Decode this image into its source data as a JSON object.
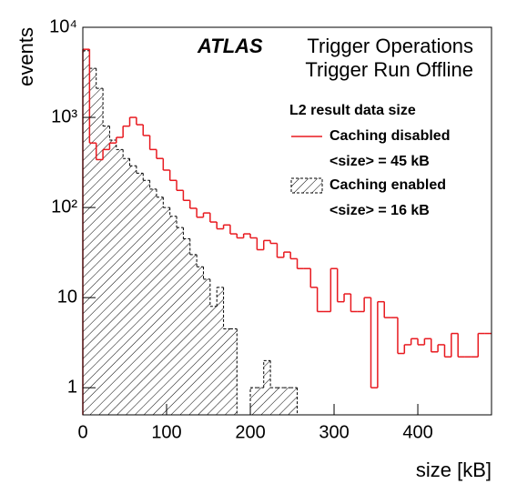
{
  "chart_data": {
    "type": "histogram",
    "experiment": "ATLAS",
    "title_lines": [
      "Trigger Operations",
      "Trigger Run Offline"
    ],
    "legend_title": "L2 result data size",
    "xlabel": "size [kB]",
    "ylabel": "events",
    "log_y": true,
    "xlim": [
      0,
      488
    ],
    "ylim": [
      0.5,
      10000
    ],
    "xticks": [
      0,
      100,
      200,
      300,
      400
    ],
    "yticks": [
      {
        "value": 1,
        "label": "1"
      },
      {
        "value": 10,
        "label": "10"
      },
      {
        "value": 100,
        "label": "10²"
      },
      {
        "value": 1000,
        "label": "10³"
      },
      {
        "value": 10000,
        "label": "10⁴"
      }
    ],
    "bins": [
      0,
      8,
      16,
      24,
      32,
      40,
      48,
      56,
      64,
      72,
      80,
      88,
      96,
      104,
      112,
      120,
      128,
      136,
      144,
      152,
      160,
      168,
      176,
      184,
      192,
      200,
      208,
      216,
      224,
      232,
      240,
      248,
      256,
      264,
      272,
      280,
      288,
      296,
      304,
      312,
      320,
      328,
      336,
      344,
      352,
      360,
      368,
      376,
      384,
      392,
      400,
      408,
      416,
      424,
      432,
      440,
      448,
      456,
      464,
      472,
      480,
      488
    ],
    "series": [
      {
        "name": "Caching disabled",
        "mean_label": "<size> = 45 kB",
        "color": "#e8191f",
        "style": "line",
        "values": [
          5700,
          520,
          340,
          440,
          520,
          600,
          800,
          1000,
          830,
          630,
          440,
          350,
          260,
          200,
          155,
          120,
          98,
          78,
          87,
          69,
          58,
          64,
          51,
          46,
          51,
          46,
          34,
          43,
          40,
          28,
          32,
          27,
          21,
          21,
          13,
          7,
          7,
          21,
          9,
          11,
          7,
          7,
          10,
          1,
          9,
          6,
          6,
          2.4,
          3,
          3.5,
          3,
          3.5,
          2.5,
          3,
          2.2,
          4,
          2.2,
          2.2,
          2.2,
          4,
          4
        ]
      },
      {
        "name": "Caching enabled",
        "mean_label": "<size> = 16 kB",
        "color": "#000000",
        "style": "hatched",
        "values": [
          5500,
          3500,
          2100,
          800,
          560,
          440,
          350,
          290,
          240,
          200,
          160,
          130,
          100,
          80,
          60,
          45,
          30,
          22,
          16,
          8,
          13,
          4.5,
          4.5,
          0,
          0,
          1,
          1,
          2,
          1,
          1,
          1,
          1,
          0,
          0,
          0,
          0,
          0,
          0,
          0,
          0,
          0,
          0,
          0,
          0,
          0,
          0,
          0,
          0,
          0,
          0,
          0,
          0,
          0,
          0,
          0,
          0,
          0,
          0,
          0,
          0,
          0
        ]
      }
    ]
  }
}
